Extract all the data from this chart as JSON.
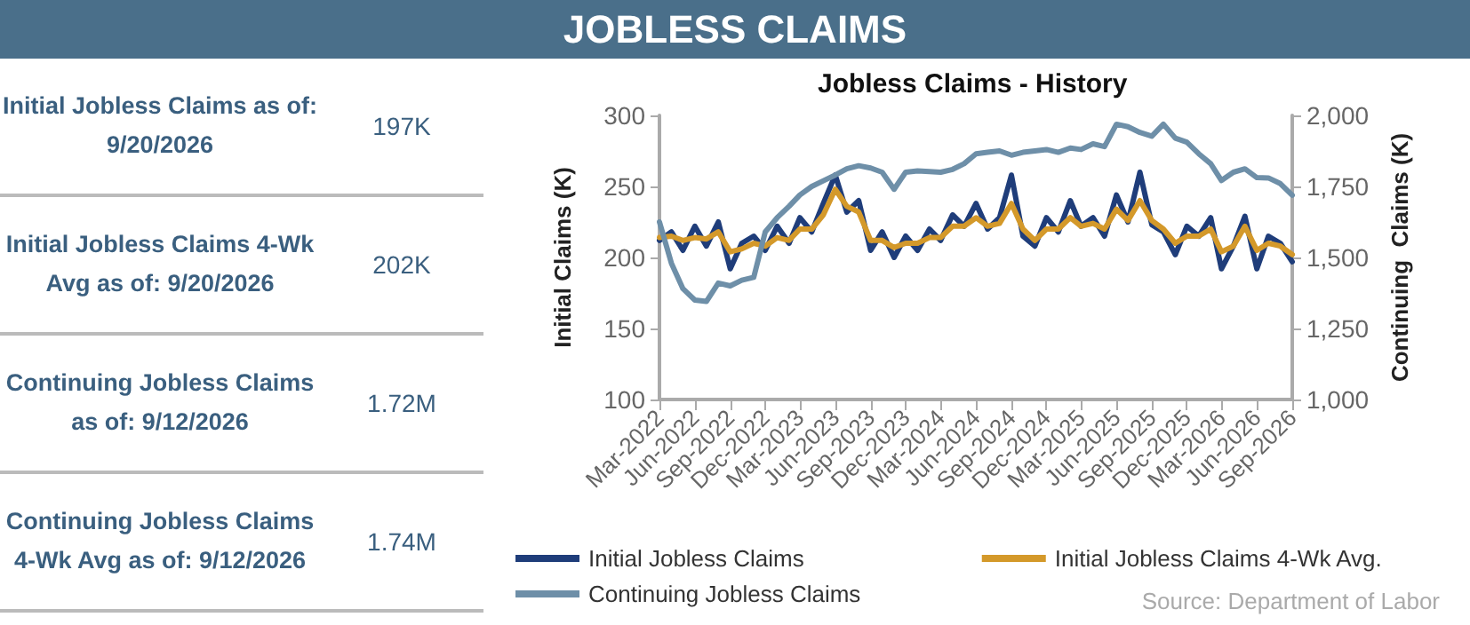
{
  "chart_data": [
    {
      "type": "other",
      "title": "JOBLESS CLAIMS",
      "annotations": [
        "Initial Jobless Claims as of: 9/20/2026",
        "197K",
        "Initial Jobless Claims 4-Wk Avg as of: 9/20/2026",
        "202K",
        "Continuing Jobless Claims as of: 9/12/2026",
        "1.72M",
        "Continuing Jobless Claims 4-Wk Avg as of: 9/12/2026",
        "1.74M"
      ]
    },
    {
      "type": "line",
      "title": "Jobless Claims - History",
      "ylabel": "Initial Claims (K)",
      "y2label": "Continuing  Claims (K)",
      "annotations": [
        "Source: Department of Labor"
      ],
      "x": [
        "2022-03",
        "2022-04",
        "2022-05",
        "2022-06",
        "2022-07",
        "2022-08",
        "2022-09",
        "2022-10",
        "2022-11",
        "2022-12",
        "2023-01",
        "2023-02",
        "2023-03",
        "2023-04",
        "2023-05",
        "2023-06",
        "2023-07",
        "2023-08",
        "2023-09",
        "2023-10",
        "2023-11",
        "2023-12",
        "2024-01",
        "2024-02",
        "2024-03",
        "2024-04",
        "2024-05",
        "2024-06",
        "2024-07",
        "2024-08",
        "2024-09",
        "2024-10",
        "2024-11",
        "2024-12",
        "2025-01",
        "2025-02",
        "2025-03",
        "2025-04",
        "2025-05",
        "2025-06",
        "2025-07",
        "2025-08",
        "2025-09",
        "2025-10",
        "2025-11",
        "2025-12",
        "2026-01",
        "2026-02",
        "2026-03",
        "2026-04",
        "2026-05",
        "2026-06",
        "2026-07",
        "2026-08",
        "2026-09"
      ],
      "series": [
        {
          "name": "Initial Jobless Claims",
          "color": "#1f3d7a",
          "values": [
            212,
            218,
            205,
            222,
            208,
            225,
            192,
            210,
            215,
            205,
            222,
            210,
            228,
            218,
            238,
            258,
            232,
            240,
            205,
            218,
            200,
            215,
            205,
            220,
            212,
            230,
            222,
            238,
            220,
            228,
            258,
            215,
            208,
            228,
            218,
            240,
            222,
            228,
            215,
            244,
            225,
            260,
            223,
            218,
            202,
            222,
            215,
            228,
            192,
            208,
            229,
            192,
            215,
            210,
            197
          ]
        },
        {
          "name": "Initial Jobless Claims 4-Wk Avg.",
          "color": "#d4992a",
          "values": [
            214,
            215,
            212,
            214,
            213,
            218,
            204,
            206,
            210,
            208,
            214,
            212,
            220,
            220,
            230,
            248,
            236,
            232,
            212,
            212,
            207,
            210,
            210,
            214,
            214,
            222,
            222,
            228,
            222,
            224,
            238,
            220,
            212,
            220,
            220,
            228,
            222,
            224,
            220,
            234,
            226,
            240,
            226,
            220,
            210,
            215,
            215,
            220,
            204,
            208,
            222,
            205,
            210,
            208,
            202
          ]
        },
        {
          "name": "Continuing Jobless Claims",
          "color": "#6e8fa8",
          "axis": "y2",
          "values": [
            1625,
            1480,
            1390,
            1350,
            1345,
            1410,
            1400,
            1420,
            1430,
            1590,
            1640,
            1680,
            1720,
            1750,
            1770,
            1790,
            1812,
            1823,
            1815,
            1800,
            1740,
            1800,
            1805,
            1802,
            1800,
            1810,
            1830,
            1865,
            1870,
            1875,
            1860,
            1870,
            1875,
            1880,
            1870,
            1885,
            1880,
            1900,
            1890,
            1969,
            1960,
            1940,
            1927,
            1969,
            1920,
            1906,
            1865,
            1830,
            1771,
            1800,
            1812,
            1781,
            1780,
            1760,
            1719
          ]
        }
      ],
      "xlim": [
        "2022-03",
        "2026-09"
      ],
      "xticks": [
        {
          "value": "2022-03",
          "label": "Mar-2022"
        },
        {
          "value": "2022-06",
          "label": "Jun-2022"
        },
        {
          "value": "2022-09",
          "label": "Sep-2022"
        },
        {
          "value": "2022-12",
          "label": "Dec-2022"
        },
        {
          "value": "2023-03",
          "label": "Mar-2023"
        },
        {
          "value": "2023-06",
          "label": "Jun-2023"
        },
        {
          "value": "2023-09",
          "label": "Sep-2023"
        },
        {
          "value": "2023-12",
          "label": "Dec-2023"
        },
        {
          "value": "2024-03",
          "label": "Mar-2024"
        },
        {
          "value": "2024-06",
          "label": "Jun-2024"
        },
        {
          "value": "2024-09",
          "label": "Sep-2024"
        },
        {
          "value": "2024-12",
          "label": "Dec-2024"
        },
        {
          "value": "2025-03",
          "label": "Mar-2025"
        },
        {
          "value": "2025-06",
          "label": "Jun-2025"
        },
        {
          "value": "2025-09",
          "label": "Sep-2025"
        },
        {
          "value": "2025-12",
          "label": "Dec-2025"
        },
        {
          "value": "2026-03",
          "label": "Mar-2026"
        },
        {
          "value": "2026-06",
          "label": "Jun-2026"
        },
        {
          "value": "2026-09",
          "label": "Sep-2026"
        }
      ],
      "ylim": [
        100,
        300
      ],
      "yticks": [
        100,
        150,
        200,
        250,
        300
      ],
      "y2lim": [
        1000,
        2000
      ],
      "y2ticks": [
        {
          "value": 1000,
          "label": "1,000"
        },
        {
          "value": 1250,
          "label": "1,250"
        },
        {
          "value": 1500,
          "label": "1,500"
        },
        {
          "value": 1750,
          "label": "1,750"
        },
        {
          "value": 2000,
          "label": "2,000"
        }
      ],
      "grid": false,
      "legend": "bottom",
      "marker": "none",
      "line_style": "solid"
    }
  ]
}
